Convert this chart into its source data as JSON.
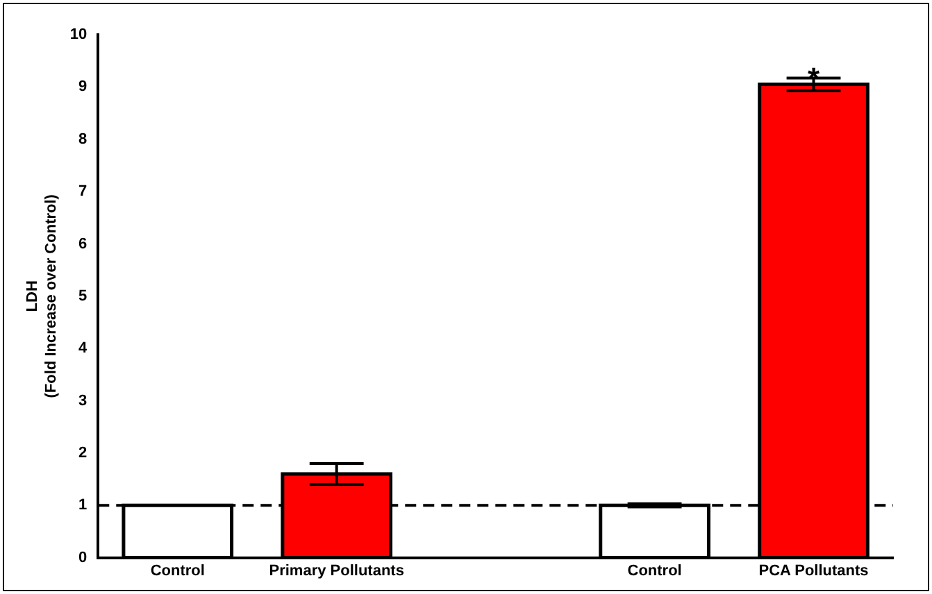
{
  "chart_data": {
    "type": "bar",
    "categories": [
      "Control",
      "Primary Pollutants",
      null,
      "Control",
      "PCA Pollutants"
    ],
    "values": [
      1,
      1.6,
      null,
      1,
      9.05
    ],
    "colors": [
      "#ffffff",
      "#ff0000",
      "#ffffff",
      "#ffffff",
      "#ff0000"
    ],
    "errors": [
      null,
      0.2,
      null,
      0.03,
      0.12
    ],
    "ylabel": "LDH\n(Fold Increase over Control)",
    "ylim": [
      0,
      10
    ],
    "yticks": [
      0,
      1,
      2,
      3,
      4,
      5,
      6,
      7,
      8,
      9,
      10
    ],
    "grid": false,
    "legend": false,
    "ref_lines": [
      {
        "axis": "y",
        "value": 1,
        "line_style": "dashed",
        "color": "#000000"
      }
    ],
    "annotations": [
      {
        "text": "*",
        "x": "PCA Pollutants",
        "y": 9.2
      }
    ]
  }
}
